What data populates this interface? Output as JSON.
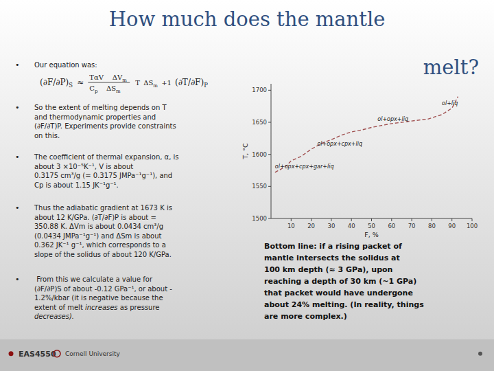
{
  "slide": {
    "title_lines": [
      "How much does the mantle",
      "melt?"
    ],
    "bullet_symbol": "•",
    "bullets": [
      [
        "Our equation was:"
      ],
      [
        "So the extent of melting depends on T",
        "and thermodynamic properties and",
        "(∂F/∂T)P. Experiments provide constraints",
        "on this."
      ],
      [
        "The coefficient of thermal expansion, α, is",
        "about 3 ×10⁻⁵K⁻¹, V is about",
        "0.3175 cm³/g (= 0.3175 JMPa⁻¹g⁻¹), and",
        "Cp is about 1.15 JK⁻¹g⁻¹."
      ],
      [
        "Thus the adiabatic gradient at 1673 K is",
        "about 12 K/GPa. (∂T/∂F)P is about =",
        "350.88 K. ΔVm is about 0.0434 cm³/g",
        "(0.0434 JMPa⁻¹g⁻¹) and ΔSm is about",
        "0.362 JK⁻¹ g⁻¹, which corresponds to a",
        "slope of the solidus of about 120 K/GPa."
      ],
      [
        " From this we calculate a value for",
        "(∂F/∂P)S of about -0.12 GPa⁻¹, or about -",
        "1.2%/kbar (it is negative because the",
        [
          {
            "text": "extent of melt ",
            "italic": false
          },
          {
            "text": "increases",
            "italic": true
          },
          {
            "text": " as pressure",
            "italic": false
          }
        ],
        [
          {
            "text": "decreases).",
            "italic": true
          }
        ]
      ]
    ],
    "equation": {
      "lhs": {
        "text": "(∂F/∂P)",
        "sub": "S"
      },
      "relation": "≈",
      "numerator": [
        {
          "text": "TαV"
        },
        {
          "text": "ΔV",
          "sub": "m"
        }
      ],
      "denominator": [
        {
          "text": "C",
          "sub": "p"
        },
        {
          "text": "ΔS",
          "sub": "m"
        }
      ],
      "tail": [
        {
          "text": "T"
        },
        {
          "text": "ΔS",
          "sub": "m"
        },
        {
          "text": "+1"
        },
        {
          "text": "(∂T/∂F)",
          "sub": "P"
        }
      ]
    },
    "bottom_text": [
      "Bottom line: if a rising packet of",
      "mantle intersects the solidus at",
      "100 km depth (≈ 3 GPa), upon",
      "reaching a depth of 30 km (~1 GPa)",
      "that packet would have undergone",
      "about 24% melting. (In reality, things",
      "are more complex.)"
    ],
    "footer_text": "EAS4550",
    "footer_cornell": "Cornell University"
  },
  "chart_data": {
    "type": "line",
    "x": [
      2,
      5,
      8,
      10,
      15,
      20,
      25,
      30,
      35,
      40,
      45,
      50,
      55,
      60,
      65,
      70,
      75,
      78,
      80,
      85,
      90,
      93
    ],
    "series": [
      {
        "values": [
          1572,
          1577,
          1583,
          1590,
          1597,
          1608,
          1617,
          1623,
          1630,
          1635,
          1638,
          1642,
          1645,
          1648,
          1650,
          1652,
          1654,
          1655,
          1657,
          1662,
          1672,
          1690
        ],
        "color": "#A05050",
        "line_style": "dashed"
      }
    ],
    "xlabel": "F, %",
    "ylabel": "T, °C",
    "xlim": [
      0,
      100
    ],
    "ylim": [
      1500,
      1710
    ],
    "xticks": [
      10,
      20,
      30,
      40,
      50,
      60,
      70,
      80,
      90,
      100
    ],
    "yticks": [
      1500,
      1550,
      1600,
      1650,
      1700
    ],
    "grid": false,
    "annotations": [
      {
        "text": "ol+liq",
        "x": 85,
        "y": 1675
      },
      {
        "text": "ol+opx+liq",
        "x": 53,
        "y": 1650
      },
      {
        "text": "ol+opx+cpx+liq",
        "x": 23,
        "y": 1611
      },
      {
        "text": "ol+opx+cpx+gar+liq",
        "x": 2,
        "y": 1576
      }
    ]
  }
}
